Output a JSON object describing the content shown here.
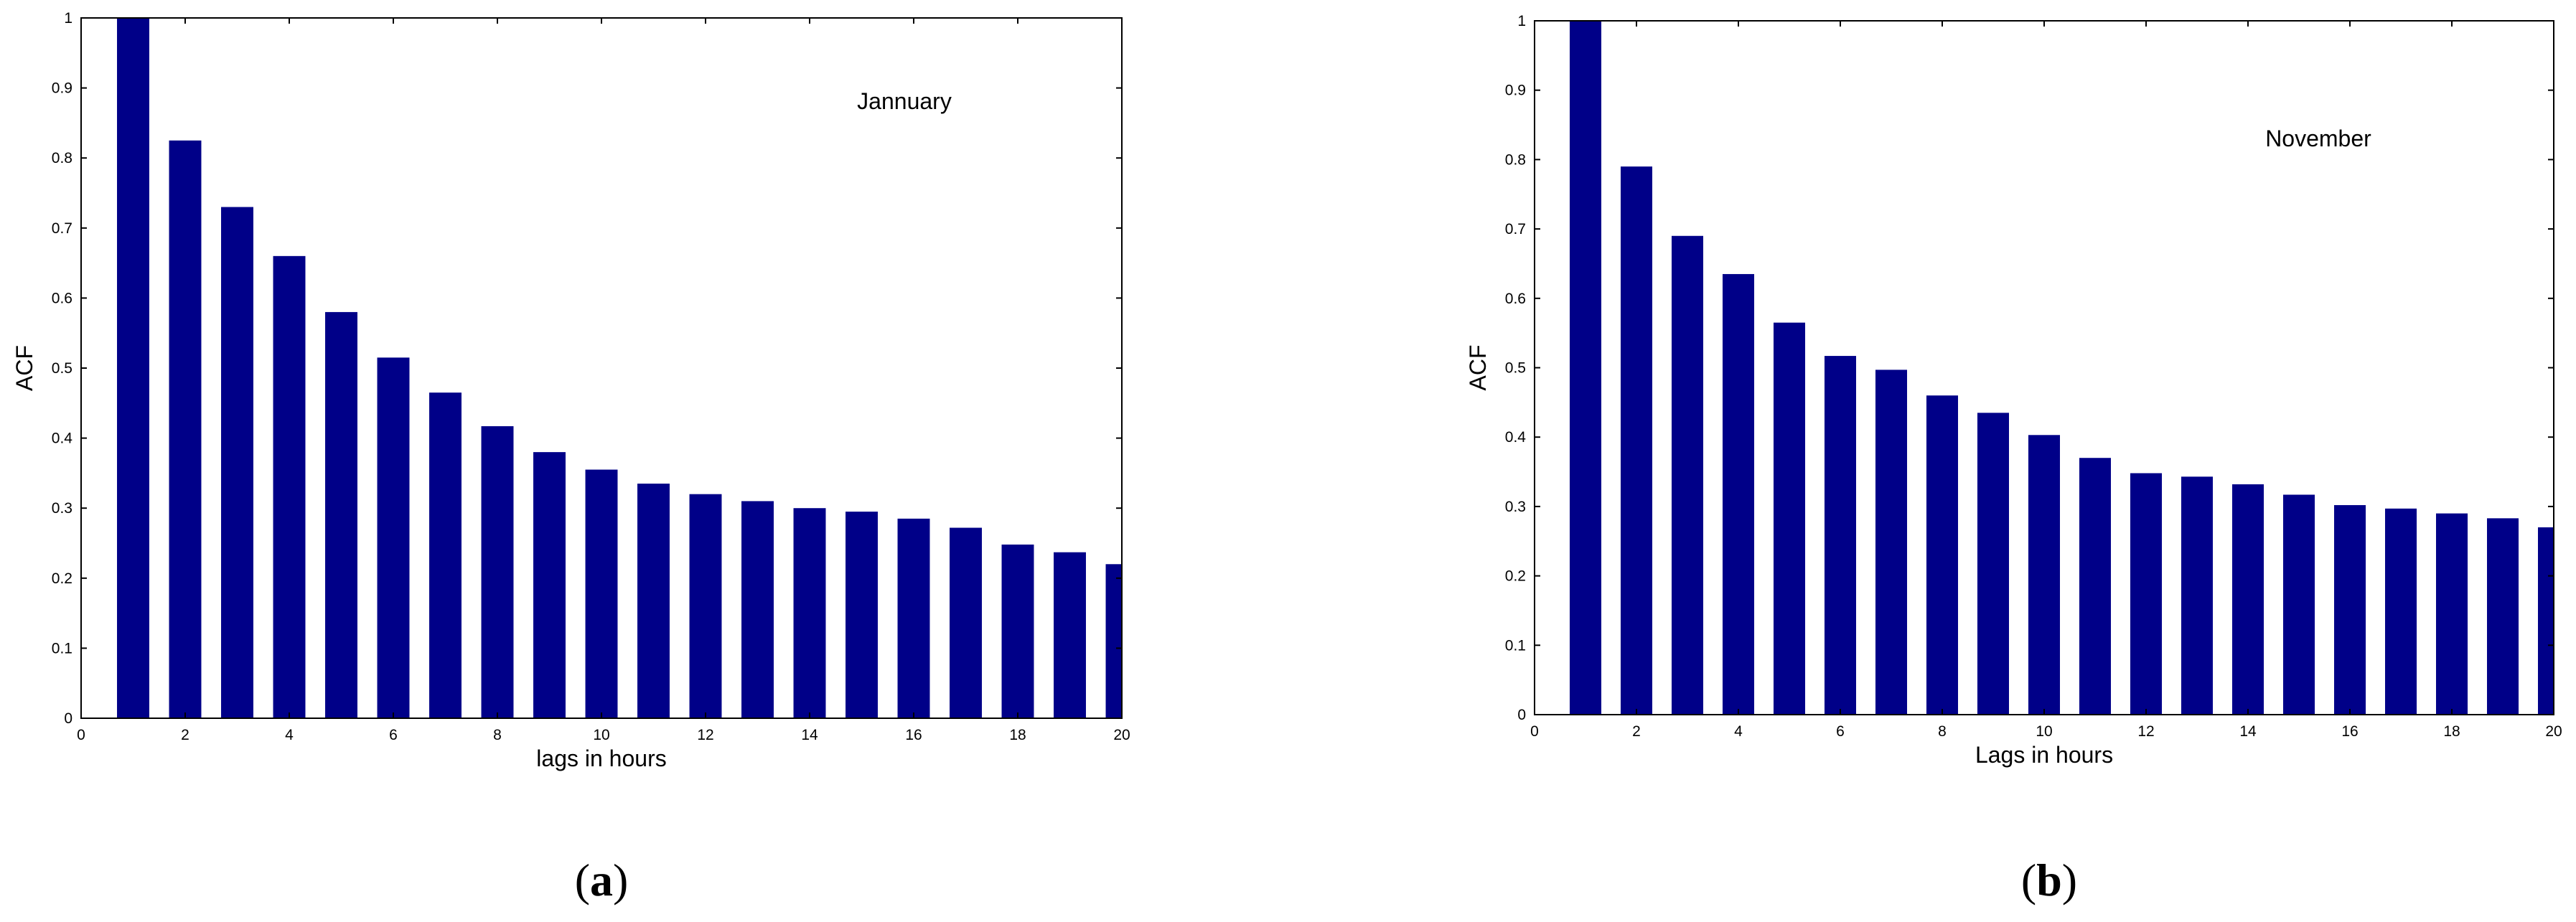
{
  "colors": {
    "bar": "#000088",
    "axis": "#000000"
  },
  "chart_data": [
    {
      "type": "bar",
      "panel_label": "(a)",
      "annotation": "Jannuary",
      "xlabel": "lags in hours",
      "ylabel": "ACF",
      "xlim": [
        0,
        20
      ],
      "ylim": [
        0,
        1
      ],
      "x_ticks": [
        0,
        2,
        4,
        6,
        8,
        10,
        12,
        14,
        16,
        18,
        20
      ],
      "y_ticks": [
        0,
        0.1,
        0.2,
        0.3,
        0.4,
        0.5,
        0.6,
        0.7,
        0.8,
        0.9,
        1
      ],
      "x": [
        1,
        2,
        3,
        4,
        5,
        6,
        7,
        8,
        9,
        10,
        11,
        12,
        13,
        14,
        15,
        16,
        17,
        18,
        19,
        20
      ],
      "values": [
        1.0,
        0.825,
        0.73,
        0.66,
        0.58,
        0.515,
        0.465,
        0.417,
        0.38,
        0.355,
        0.335,
        0.32,
        0.31,
        0.3,
        0.295,
        0.285,
        0.272,
        0.248,
        0.237,
        0.22
      ],
      "grid": false
    },
    {
      "type": "bar",
      "panel_label": "(b)",
      "annotation": "November",
      "xlabel": "Lags in hours",
      "ylabel": "ACF",
      "xlim": [
        0,
        20
      ],
      "ylim": [
        0,
        1
      ],
      "x_ticks": [
        0,
        2,
        4,
        6,
        8,
        10,
        12,
        14,
        16,
        18,
        20
      ],
      "y_ticks": [
        0,
        0.1,
        0.2,
        0.3,
        0.4,
        0.5,
        0.6,
        0.7,
        0.8,
        0.9,
        1
      ],
      "x": [
        1,
        2,
        3,
        4,
        5,
        6,
        7,
        8,
        9,
        10,
        11,
        12,
        13,
        14,
        15,
        16,
        17,
        18,
        19,
        20
      ],
      "values": [
        1.0,
        0.79,
        0.69,
        0.635,
        0.565,
        0.517,
        0.497,
        0.46,
        0.435,
        0.403,
        0.37,
        0.348,
        0.343,
        0.332,
        0.317,
        0.302,
        0.297,
        0.29,
        0.283,
        0.27
      ],
      "grid": false
    }
  ]
}
